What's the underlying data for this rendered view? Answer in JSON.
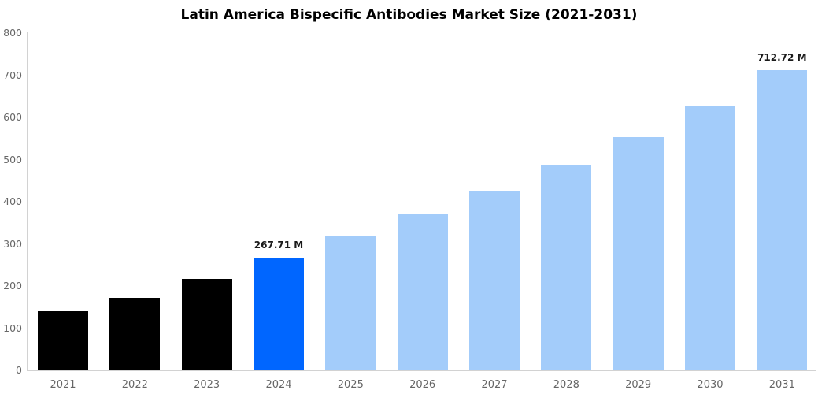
{
  "chart_data": {
    "type": "bar",
    "title": "Latin America Bispecific Antibodies Market Size (2021-2031)",
    "categories": [
      "2021",
      "2022",
      "2023",
      "2024",
      "2025",
      "2026",
      "2027",
      "2028",
      "2029",
      "2030",
      "2031"
    ],
    "values": [
      141,
      172,
      217,
      267.71,
      317,
      371,
      427,
      488,
      553,
      627,
      712.72
    ],
    "unit": "M",
    "bar_roles": [
      "historical",
      "historical",
      "historical",
      "highlight",
      "forecast",
      "forecast",
      "forecast",
      "forecast",
      "forecast",
      "forecast",
      "forecast"
    ],
    "annotations": [
      {
        "category": "2024",
        "label": "267.71 M"
      },
      {
        "category": "2031",
        "label": "712.72 M"
      }
    ],
    "xlabel": "",
    "ylabel": "",
    "ylim": [
      0,
      800
    ],
    "yticks": [
      0,
      100,
      200,
      300,
      400,
      500,
      600,
      700,
      800
    ],
    "grid": false,
    "legend": false,
    "colors": {
      "historical": "#000000",
      "highlight": "#0066ff",
      "forecast": "#a3ccfa",
      "axis_line": "#d2d2d2",
      "tick_label": "#666666",
      "annotation_text": "#1a1a1a",
      "title_text": "#000000",
      "background": "#ffffff"
    }
  }
}
